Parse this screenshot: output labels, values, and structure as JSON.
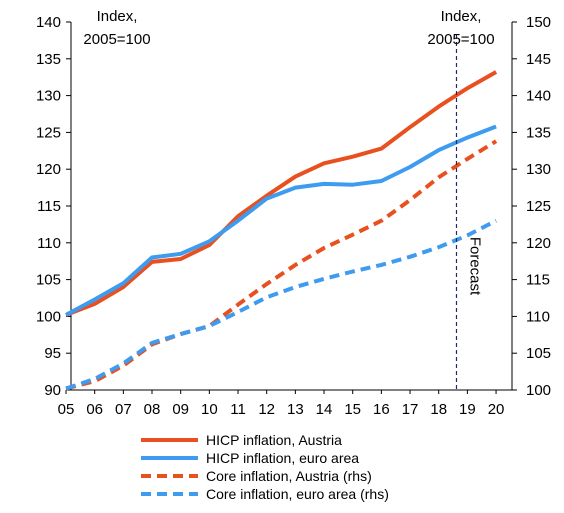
{
  "chart_data": {
    "type": "line",
    "x": [
      "05",
      "06",
      "07",
      "08",
      "09",
      "10",
      "11",
      "12",
      "13",
      "14",
      "15",
      "16",
      "17",
      "18",
      "19",
      "20"
    ],
    "y_left": {
      "ylim": [
        90,
        140
      ],
      "ticks": [
        "90",
        "95",
        "100",
        "105",
        "110",
        "115",
        "120",
        "125",
        "130",
        "135",
        "140"
      ]
    },
    "y_right": {
      "ylim": [
        100,
        150
      ],
      "ticks": [
        "100",
        "105",
        "110",
        "115",
        "120",
        "125",
        "130",
        "135",
        "140",
        "145",
        "150"
      ]
    },
    "left_unit_line1": "Index,",
    "left_unit_line2": "2005=100",
    "right_unit_line1": "Index,",
    "right_unit_line2": "2005=100",
    "forecast_label": "Forecast",
    "forecast_after": "18",
    "grid": false,
    "legend_position": "bottom",
    "series": [
      {
        "name": "HICP inflation, Austria",
        "axis": "left",
        "style": "solid",
        "color": "#e8501f",
        "values": [
          100.2,
          101.7,
          104.0,
          107.4,
          107.8,
          109.7,
          113.6,
          116.4,
          119.0,
          120.8,
          121.7,
          122.8,
          125.7,
          128.5,
          131.0,
          133.2
        ]
      },
      {
        "name": "HICP inflation, euro area",
        "axis": "left",
        "style": "solid",
        "color": "#3d9bf0",
        "values": [
          100.2,
          102.3,
          104.5,
          108.0,
          108.5,
          110.2,
          113.0,
          116.0,
          117.5,
          118.0,
          117.9,
          118.4,
          120.3,
          122.6,
          124.3,
          125.8
        ]
      },
      {
        "name": "Core inflation, Austria (rhs)",
        "axis": "right",
        "style": "dashed",
        "color": "#e8501f",
        "values": [
          100.2,
          101.2,
          103.3,
          106.2,
          107.6,
          108.7,
          111.6,
          114.4,
          117.0,
          119.3,
          121.1,
          123.0,
          125.8,
          128.9,
          131.4,
          133.8
        ]
      },
      {
        "name": "Core inflation, euro area (rhs)",
        "axis": "right",
        "style": "dashed",
        "color": "#3d9bf0",
        "values": [
          100.2,
          101.5,
          103.6,
          106.4,
          107.6,
          108.7,
          110.6,
          112.6,
          114.0,
          115.1,
          116.1,
          117.0,
          118.1,
          119.4,
          121.0,
          123.0
        ]
      }
    ]
  }
}
